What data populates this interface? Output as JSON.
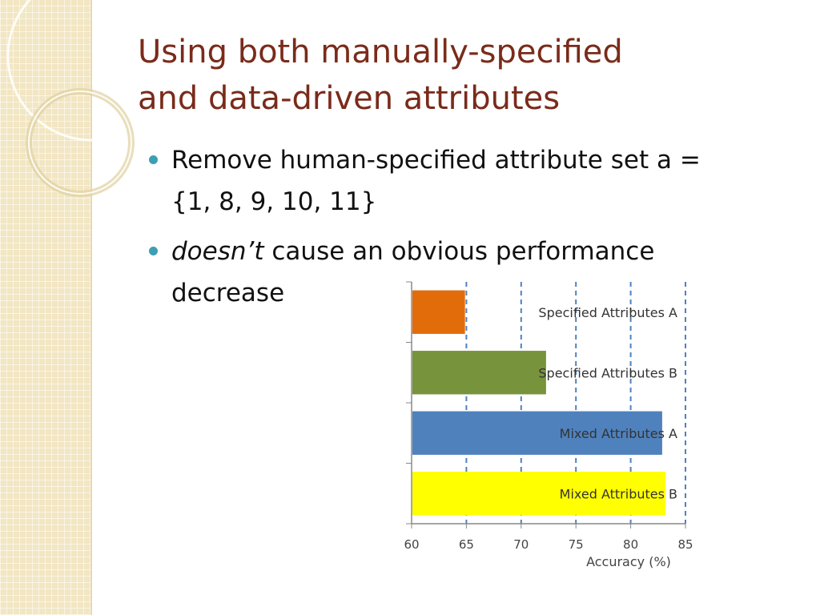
{
  "title": {
    "line1": "Using both manually-specified",
    "line2": "and data-driven attributes"
  },
  "bullets": [
    {
      "line1": "Remove human-specified attribute set a =",
      "line2": "{1, 8, 9, 10, 11}"
    },
    {
      "emph": "doesn’t",
      "rest": " cause an obvious performance",
      "line2": "decrease"
    }
  ],
  "colors": {
    "title": "#7a2b1a",
    "bullet": "#3d9fb4"
  },
  "chart_data": {
    "type": "bar",
    "orientation": "horizontal",
    "categories": [
      "Specified Attributes A",
      "Specified Attributes B",
      "Mixed Attributes  A",
      "Mixed Attributes  B"
    ],
    "values": [
      64.8,
      72.2,
      82.8,
      83.1
    ],
    "colors": [
      "#e36c0a",
      "#77933c",
      "#4f81bd",
      "#ffff00"
    ],
    "xlabel": "Accuracy (%)",
    "xlim": [
      60,
      85
    ],
    "xticks": [
      60,
      65,
      70,
      75,
      80,
      85
    ],
    "grid": "vertical dashed",
    "labels_inside_bars": true
  }
}
